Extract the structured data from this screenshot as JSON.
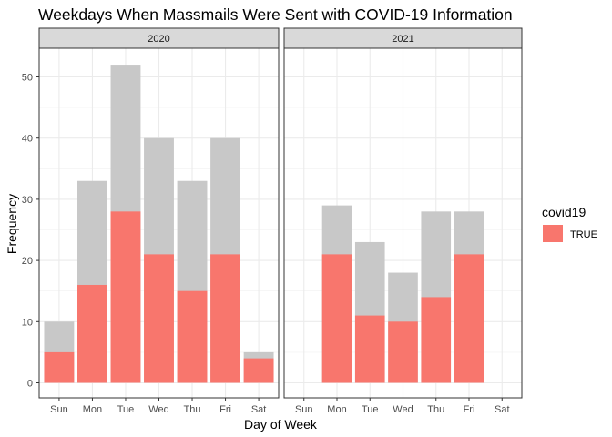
{
  "chart_data": {
    "type": "bar",
    "title": "Weekdays When Massmails Were Sent with COVID-19 Information",
    "xlabel": "Day of Week",
    "ylabel": "Frequency",
    "ylim": [
      0,
      55
    ],
    "yticks": [
      0,
      10,
      20,
      30,
      40,
      50
    ],
    "categories": [
      "Sun",
      "Mon",
      "Tue",
      "Wed",
      "Thu",
      "Fri",
      "Sat"
    ],
    "grid": true,
    "legend": {
      "title": "covid19",
      "placement": "right",
      "entries": [
        {
          "label": "TRUE",
          "color": "#F8766D"
        }
      ]
    },
    "colors": {
      "total": "#C8C8C8",
      "covid": "#F8766D"
    },
    "facets": [
      {
        "label": "2020",
        "series": [
          {
            "name": "total",
            "values": [
              10,
              33,
              52,
              40,
              33,
              40,
              5
            ]
          },
          {
            "name": "TRUE",
            "values": [
              5,
              16,
              28,
              21,
              15,
              21,
              4
            ]
          }
        ]
      },
      {
        "label": "2021",
        "series": [
          {
            "name": "total",
            "values": [
              null,
              29,
              23,
              18,
              28,
              28,
              null
            ]
          },
          {
            "name": "TRUE",
            "values": [
              null,
              21,
              11,
              10,
              14,
              21,
              null
            ]
          }
        ]
      }
    ]
  }
}
